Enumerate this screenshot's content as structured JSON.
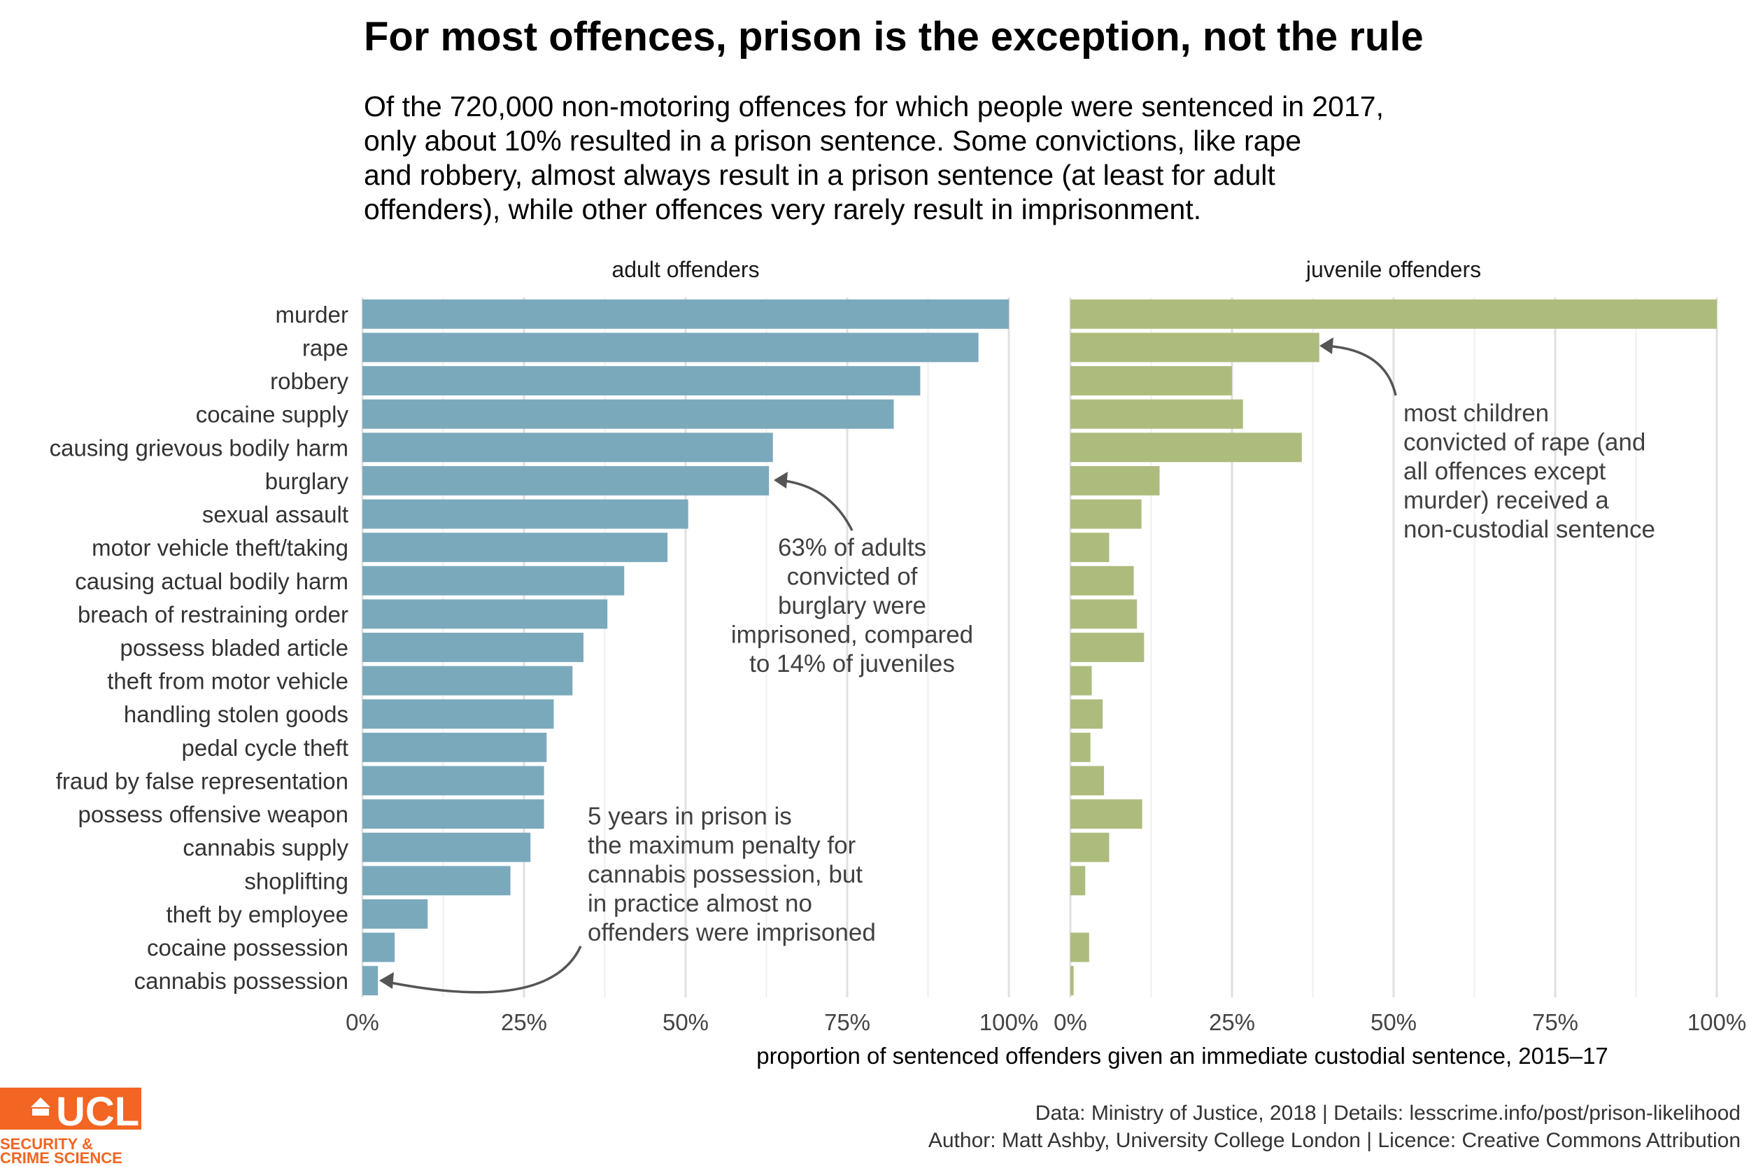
{
  "chart_data": {
    "type": "bar",
    "title": "For most offences, prison is the exception, not the rule",
    "subtitle": [
      "Of the 720,000 non-motoring offences for which people were sentenced in 2017,",
      "only about 10% resulted in a prison sentence. Some convictions, like rape",
      "and robbery, almost always result in a prison sentence (at least for adult",
      "offenders), while other offences very rarely result in imprisonment."
    ],
    "categories": [
      "murder",
      "rape",
      "robbery",
      "cocaine supply",
      "causing grievous bodily harm",
      "burglary",
      "sexual assault",
      "motor vehicle theft/taking",
      "causing actual bodily harm",
      "breach of restraining order",
      "possess bladed article",
      "theft from motor vehicle",
      "handling stolen goods",
      "pedal cycle theft",
      "fraud by false representation",
      "possess offensive weapon",
      "cannabis supply",
      "shoplifting",
      "theft by employee",
      "cocaine possession",
      "cannabis possession"
    ],
    "series": [
      {
        "name": "adult offenders",
        "color": "#7ba9bc",
        "values": [
          100,
          95.3,
          86.3,
          82.2,
          63.5,
          62.9,
          50.4,
          47.2,
          40.5,
          37.9,
          34.2,
          32.5,
          29.6,
          28.5,
          28.1,
          28.1,
          26.0,
          22.9,
          10.1,
          5.0,
          2.4
        ]
      },
      {
        "name": "juvenile offenders",
        "color": "#adbc7d",
        "values": [
          100,
          38.5,
          25.0,
          26.7,
          35.8,
          13.8,
          11.0,
          6.0,
          9.8,
          10.3,
          11.4,
          3.3,
          5.0,
          3.1,
          5.2,
          11.1,
          6.0,
          2.3,
          0,
          2.9,
          0.5
        ]
      }
    ],
    "x_ticks": [
      "0%",
      "25%",
      "50%",
      "75%",
      "100%"
    ],
    "xlim": [
      0,
      100
    ],
    "xlabel": "proportion of sentenced offenders given an immediate custodial sentence, 2015–17",
    "grid": true,
    "annotations": [
      [
        "63% of adults",
        "convicted of",
        "burglary were",
        "imprisoned, compared",
        "to 14% of juveniles"
      ],
      [
        "5 years in prison is",
        "the maximum penalty for",
        "cannabis possession, but",
        "in practice almost no",
        "offenders were imprisoned"
      ],
      [
        "most children",
        "convicted of rape (and",
        "all offences except",
        "murder) received a",
        "non-custodial sentence"
      ]
    ]
  },
  "caption": [
    "Data: Ministry of Justice, 2018 |  Details: lesscrime.info/post/prison-likelihood",
    "Author: Matt Ashby, University College London |  Licence: Creative Commons Attribution"
  ],
  "logo": {
    "wordmark": "UCL",
    "lines": [
      "SECURITY &",
      "CRIME SCIENCE"
    ],
    "color": "#f26522"
  }
}
